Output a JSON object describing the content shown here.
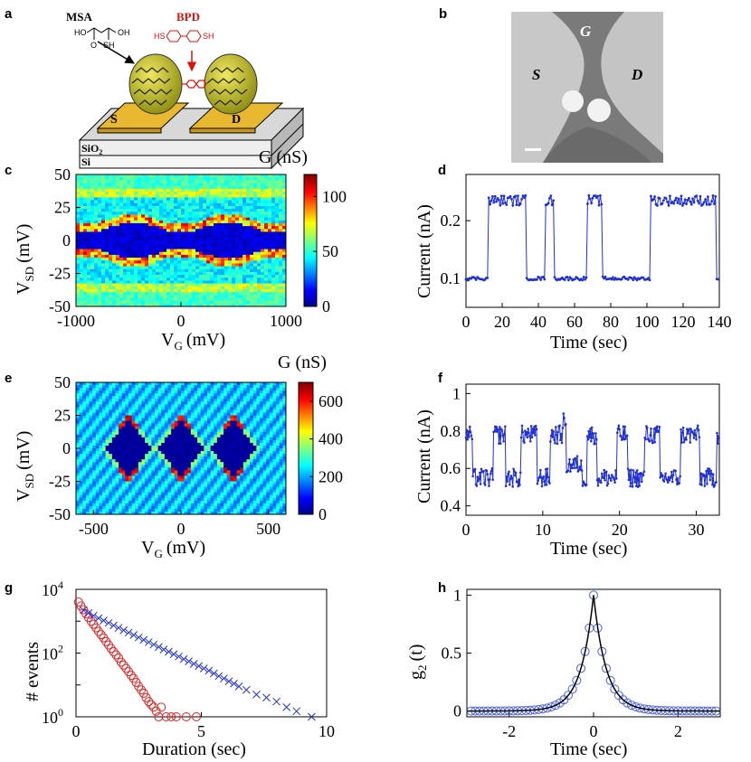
{
  "panels": {
    "a": {
      "label": "a",
      "msa_label": "MSA",
      "bpd_label": "BPD",
      "source_label": "S",
      "drain_label": "D",
      "oxide_label": "SiO",
      "oxide_sub": "2",
      "silicon_label": "Si",
      "msa_atoms": {
        "ho": "HO",
        "oh": "OH",
        "sh": "SH",
        "o": "O"
      },
      "bpd_atoms": {
        "hs": "HS",
        "sh": "SH"
      },
      "colors": {
        "electrode": "#e8b830",
        "particle": "#c8c020",
        "bpd": "#e01010"
      }
    },
    "b": {
      "label": "b",
      "gate": "G",
      "source": "S",
      "drain": "D"
    },
    "c": {
      "label": "c",
      "colorbar_title": "G (nS)",
      "xlabel_main": "V",
      "xlabel_sub": "G",
      "xlabel_unit": "(mV)",
      "ylabel_main": "V",
      "ylabel_sub": "SD",
      "ylabel_unit": "(mV)",
      "xticks": [
        "-1000",
        "0",
        "1000"
      ],
      "yticks": [
        "50",
        "25",
        "0",
        "-25",
        "-50"
      ],
      "cbticks": [
        "100",
        "50",
        "0"
      ]
    },
    "d": {
      "label": "d",
      "xlabel": "Time (sec)",
      "ylabel": "Current (nA)",
      "xticks": [
        "0",
        "20",
        "40",
        "60",
        "80",
        "100",
        "120",
        "140"
      ],
      "yticks": [
        "0.2",
        "0.1"
      ]
    },
    "e": {
      "label": "e",
      "colorbar_title": "G (nS)",
      "xlabel_main": "V",
      "xlabel_sub": "G",
      "xlabel_unit": "(mV)",
      "ylabel_main": "V",
      "ylabel_sub": "SD",
      "ylabel_unit": "(mV)",
      "xticks": [
        "-500",
        "0",
        "500"
      ],
      "yticks": [
        "50",
        "25",
        "0",
        "-25",
        "-50"
      ],
      "cbticks": [
        "600",
        "400",
        "200",
        "0"
      ]
    },
    "f": {
      "label": "f",
      "xlabel": "Time (sec)",
      "ylabel": "Current (nA)",
      "xticks": [
        "0",
        "10",
        "20",
        "30"
      ],
      "yticks": [
        "1",
        "0.8",
        "0.6",
        "0.4"
      ]
    },
    "g": {
      "label": "g",
      "xlabel": "Duration (sec)",
      "ylabel": "# events",
      "xticks": [
        "0",
        "5",
        "10"
      ],
      "ytick_base": "10",
      "ytick_exps": [
        "4",
        "2",
        "0"
      ]
    },
    "h": {
      "label": "h",
      "xlabel": "Time (sec)",
      "ylabel_main": "g",
      "ylabel_sub": "2",
      "ylabel_rest": "(t)",
      "xticks": [
        "-2",
        "0",
        "2"
      ],
      "yticks": [
        "1",
        "0.5",
        "0"
      ]
    }
  },
  "chart_data": [
    {
      "id": "c",
      "type": "heatmap",
      "title": "",
      "xlabel": "V_G (mV)",
      "ylabel": "V_SD (mV)",
      "xlim": [
        -1000,
        1000
      ],
      "ylim": [
        -50,
        50
      ],
      "clim": [
        0,
        120
      ],
      "colorbar_label": "G (nS)",
      "colormap": "jet",
      "description_values": {
        "gap_center": 0,
        "gap_halfwidth_min": 6,
        "gap_halfwidth_max": 14,
        "period_mV": 900
      }
    },
    {
      "id": "d",
      "type": "line",
      "xlabel": "Time (sec)",
      "ylabel": "Current (nA)",
      "xlim": [
        0,
        140
      ],
      "ylim": [
        0.05,
        0.28
      ],
      "series": [
        {
          "name": "current",
          "levels": {
            "low": 0.1,
            "high": 0.235
          },
          "high_intervals": [
            [
              12,
              33
            ],
            [
              44,
              49
            ],
            [
              67,
              75
            ],
            [
              102,
              138
            ]
          ]
        }
      ]
    },
    {
      "id": "e",
      "type": "heatmap",
      "xlabel": "V_G (mV)",
      "ylabel": "V_SD (mV)",
      "xlim": [
        -600,
        600
      ],
      "ylim": [
        -50,
        50
      ],
      "clim": [
        0,
        700
      ],
      "colorbar_label": "G (nS)",
      "colormap": "jet",
      "description_values": {
        "diamond_centers_mV": [
          -300,
          0,
          300
        ],
        "diamond_halfheight_mV": 22
      }
    },
    {
      "id": "f",
      "type": "line",
      "xlabel": "Time (sec)",
      "ylabel": "Current (nA)",
      "xlim": [
        0,
        33
      ],
      "ylim": [
        0.35,
        1.05
      ],
      "series": [
        {
          "name": "current",
          "levels": {
            "low": 0.55,
            "high": 0.78
          }
        }
      ]
    },
    {
      "id": "g",
      "type": "scatter",
      "xlabel": "Duration (sec)",
      "ylabel": "# events",
      "yscale": "log",
      "xlim": [
        0,
        10
      ],
      "ylim": [
        1,
        10000
      ],
      "series": [
        {
          "name": "circles (red)",
          "marker": "o",
          "color": "#e02020",
          "x": [
            0.1,
            0.2,
            0.3,
            0.4,
            0.5,
            0.6,
            0.7,
            0.8,
            0.9,
            1.0,
            1.1,
            1.2,
            1.3,
            1.4,
            1.5,
            1.6,
            1.7,
            1.8,
            1.9,
            2.0,
            2.1,
            2.2,
            2.3,
            2.4,
            2.5,
            2.6,
            2.7,
            2.8,
            2.9,
            3.0,
            3.1,
            3.2,
            3.3,
            3.4,
            3.6,
            3.8,
            4.0,
            4.4,
            4.8
          ],
          "y": [
            4000,
            3000,
            2300,
            1700,
            1300,
            1000,
            800,
            620,
            480,
            380,
            300,
            230,
            180,
            140,
            110,
            88,
            70,
            52,
            42,
            33,
            26,
            20,
            16,
            12,
            9,
            7,
            5.5,
            4,
            3,
            2.4,
            2,
            1.5,
            1,
            2,
            1,
            1,
            1,
            1,
            1
          ]
        },
        {
          "name": "crosses (blue)",
          "marker": "x",
          "color": "#2030d0",
          "x": [
            0.3,
            0.5,
            0.7,
            0.9,
            1.1,
            1.3,
            1.5,
            1.7,
            1.9,
            2.1,
            2.3,
            2.5,
            2.7,
            2.9,
            3.1,
            3.3,
            3.5,
            3.7,
            3.9,
            4.1,
            4.3,
            4.5,
            4.7,
            4.9,
            5.1,
            5.3,
            5.5,
            5.7,
            5.9,
            6.1,
            6.3,
            6.5,
            6.8,
            7.2,
            7.6,
            8.0,
            8.4,
            8.8,
            9.4
          ],
          "y": [
            2200,
            1800,
            1500,
            1250,
            1050,
            880,
            740,
            620,
            520,
            440,
            370,
            310,
            260,
            220,
            185,
            155,
            130,
            110,
            92,
            78,
            65,
            55,
            46,
            39,
            33,
            28,
            23,
            19,
            16,
            13,
            11,
            9,
            7,
            5,
            4,
            3,
            2,
            1.5,
            1
          ]
        }
      ]
    },
    {
      "id": "h",
      "type": "line",
      "xlabel": "Time (sec)",
      "ylabel": "g2 (t)",
      "xlim": [
        -3,
        3
      ],
      "ylim": [
        -0.05,
        1.05
      ],
      "series": [
        {
          "name": "data",
          "marker": "o",
          "color": "#4a60e8",
          "model": "exp(-|t|/0.3)"
        },
        {
          "name": "fit",
          "marker": "none",
          "color": "#000000",
          "model": "exp(-|t|/0.3)"
        }
      ]
    }
  ]
}
